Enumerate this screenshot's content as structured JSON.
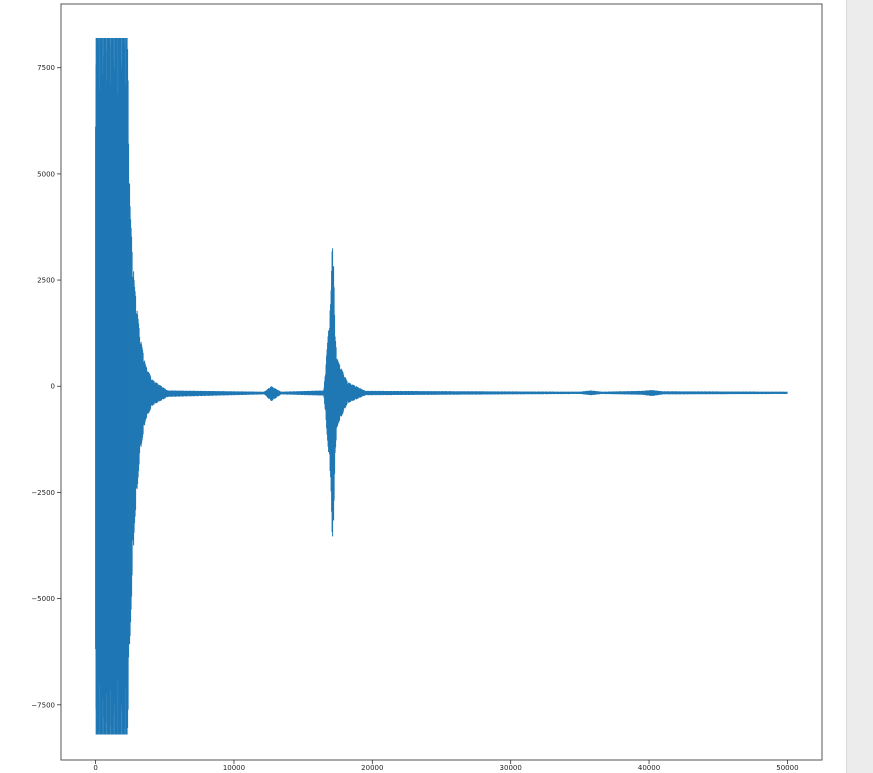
{
  "chart_data": {
    "type": "line",
    "title": "",
    "xlabel": "",
    "ylabel": "",
    "xlim": [
      -2500,
      52500
    ],
    "ylim": [
      -8800,
      9000
    ],
    "x_ticks": [
      {
        "value": 0,
        "label": "0"
      },
      {
        "value": 10000,
        "label": "10000"
      },
      {
        "value": 20000,
        "label": "20000"
      },
      {
        "value": 30000,
        "label": "30000"
      },
      {
        "value": 40000,
        "label": "40000"
      },
      {
        "value": 50000,
        "label": "50000"
      }
    ],
    "y_ticks": [
      {
        "value": 7500,
        "label": "7500"
      },
      {
        "value": 5000,
        "label": "5000"
      },
      {
        "value": 2500,
        "label": "2500"
      },
      {
        "value": 0,
        "label": "0"
      },
      {
        "value": -2500,
        "label": "−2500"
      },
      {
        "value": -5000,
        "label": "−5000"
      },
      {
        "value": -7500,
        "label": "−7500"
      }
    ],
    "grid": false,
    "series": [
      {
        "color": "#1f77b4",
        "baseline": -150,
        "clip_max": 8200,
        "clip_min": -8200,
        "x_end": 50000,
        "envelope_points": [
          {
            "x": 0,
            "hi": 8200,
            "lo": -8200
          },
          {
            "x": 2300,
            "hi": 8200,
            "lo": -8200
          },
          {
            "x": 2500,
            "hi": 4100,
            "lo": -5800
          },
          {
            "x": 2800,
            "hi": 2400,
            "lo": -3300
          },
          {
            "x": 3200,
            "hi": 1200,
            "lo": -1600
          },
          {
            "x": 3600,
            "hi": 500,
            "lo": -800
          },
          {
            "x": 4100,
            "hi": 150,
            "lo": -450
          },
          {
            "x": 5200,
            "hi": -100,
            "lo": -250
          },
          {
            "x": 12200,
            "hi": -130,
            "lo": -190
          },
          {
            "x": 12700,
            "hi": 0,
            "lo": -350
          },
          {
            "x": 13400,
            "hi": -130,
            "lo": -190
          },
          {
            "x": 16500,
            "hi": -100,
            "lo": -220
          },
          {
            "x": 17000,
            "hi": 2000,
            "lo": -2200
          },
          {
            "x": 17150,
            "hi": 3900,
            "lo": -4200
          },
          {
            "x": 17300,
            "hi": 1200,
            "lo": -1600
          },
          {
            "x": 17500,
            "hi": 600,
            "lo": -900
          },
          {
            "x": 18200,
            "hi": 100,
            "lo": -400
          },
          {
            "x": 19500,
            "hi": -110,
            "lo": -210
          },
          {
            "x": 35000,
            "hi": -130,
            "lo": -180
          },
          {
            "x": 35800,
            "hi": -100,
            "lo": -210
          },
          {
            "x": 36600,
            "hi": -130,
            "lo": -180
          },
          {
            "x": 39500,
            "hi": -110,
            "lo": -200
          },
          {
            "x": 40200,
            "hi": -90,
            "lo": -230
          },
          {
            "x": 41000,
            "hi": -120,
            "lo": -190
          },
          {
            "x": 50000,
            "hi": -130,
            "lo": -180
          }
        ]
      }
    ]
  }
}
